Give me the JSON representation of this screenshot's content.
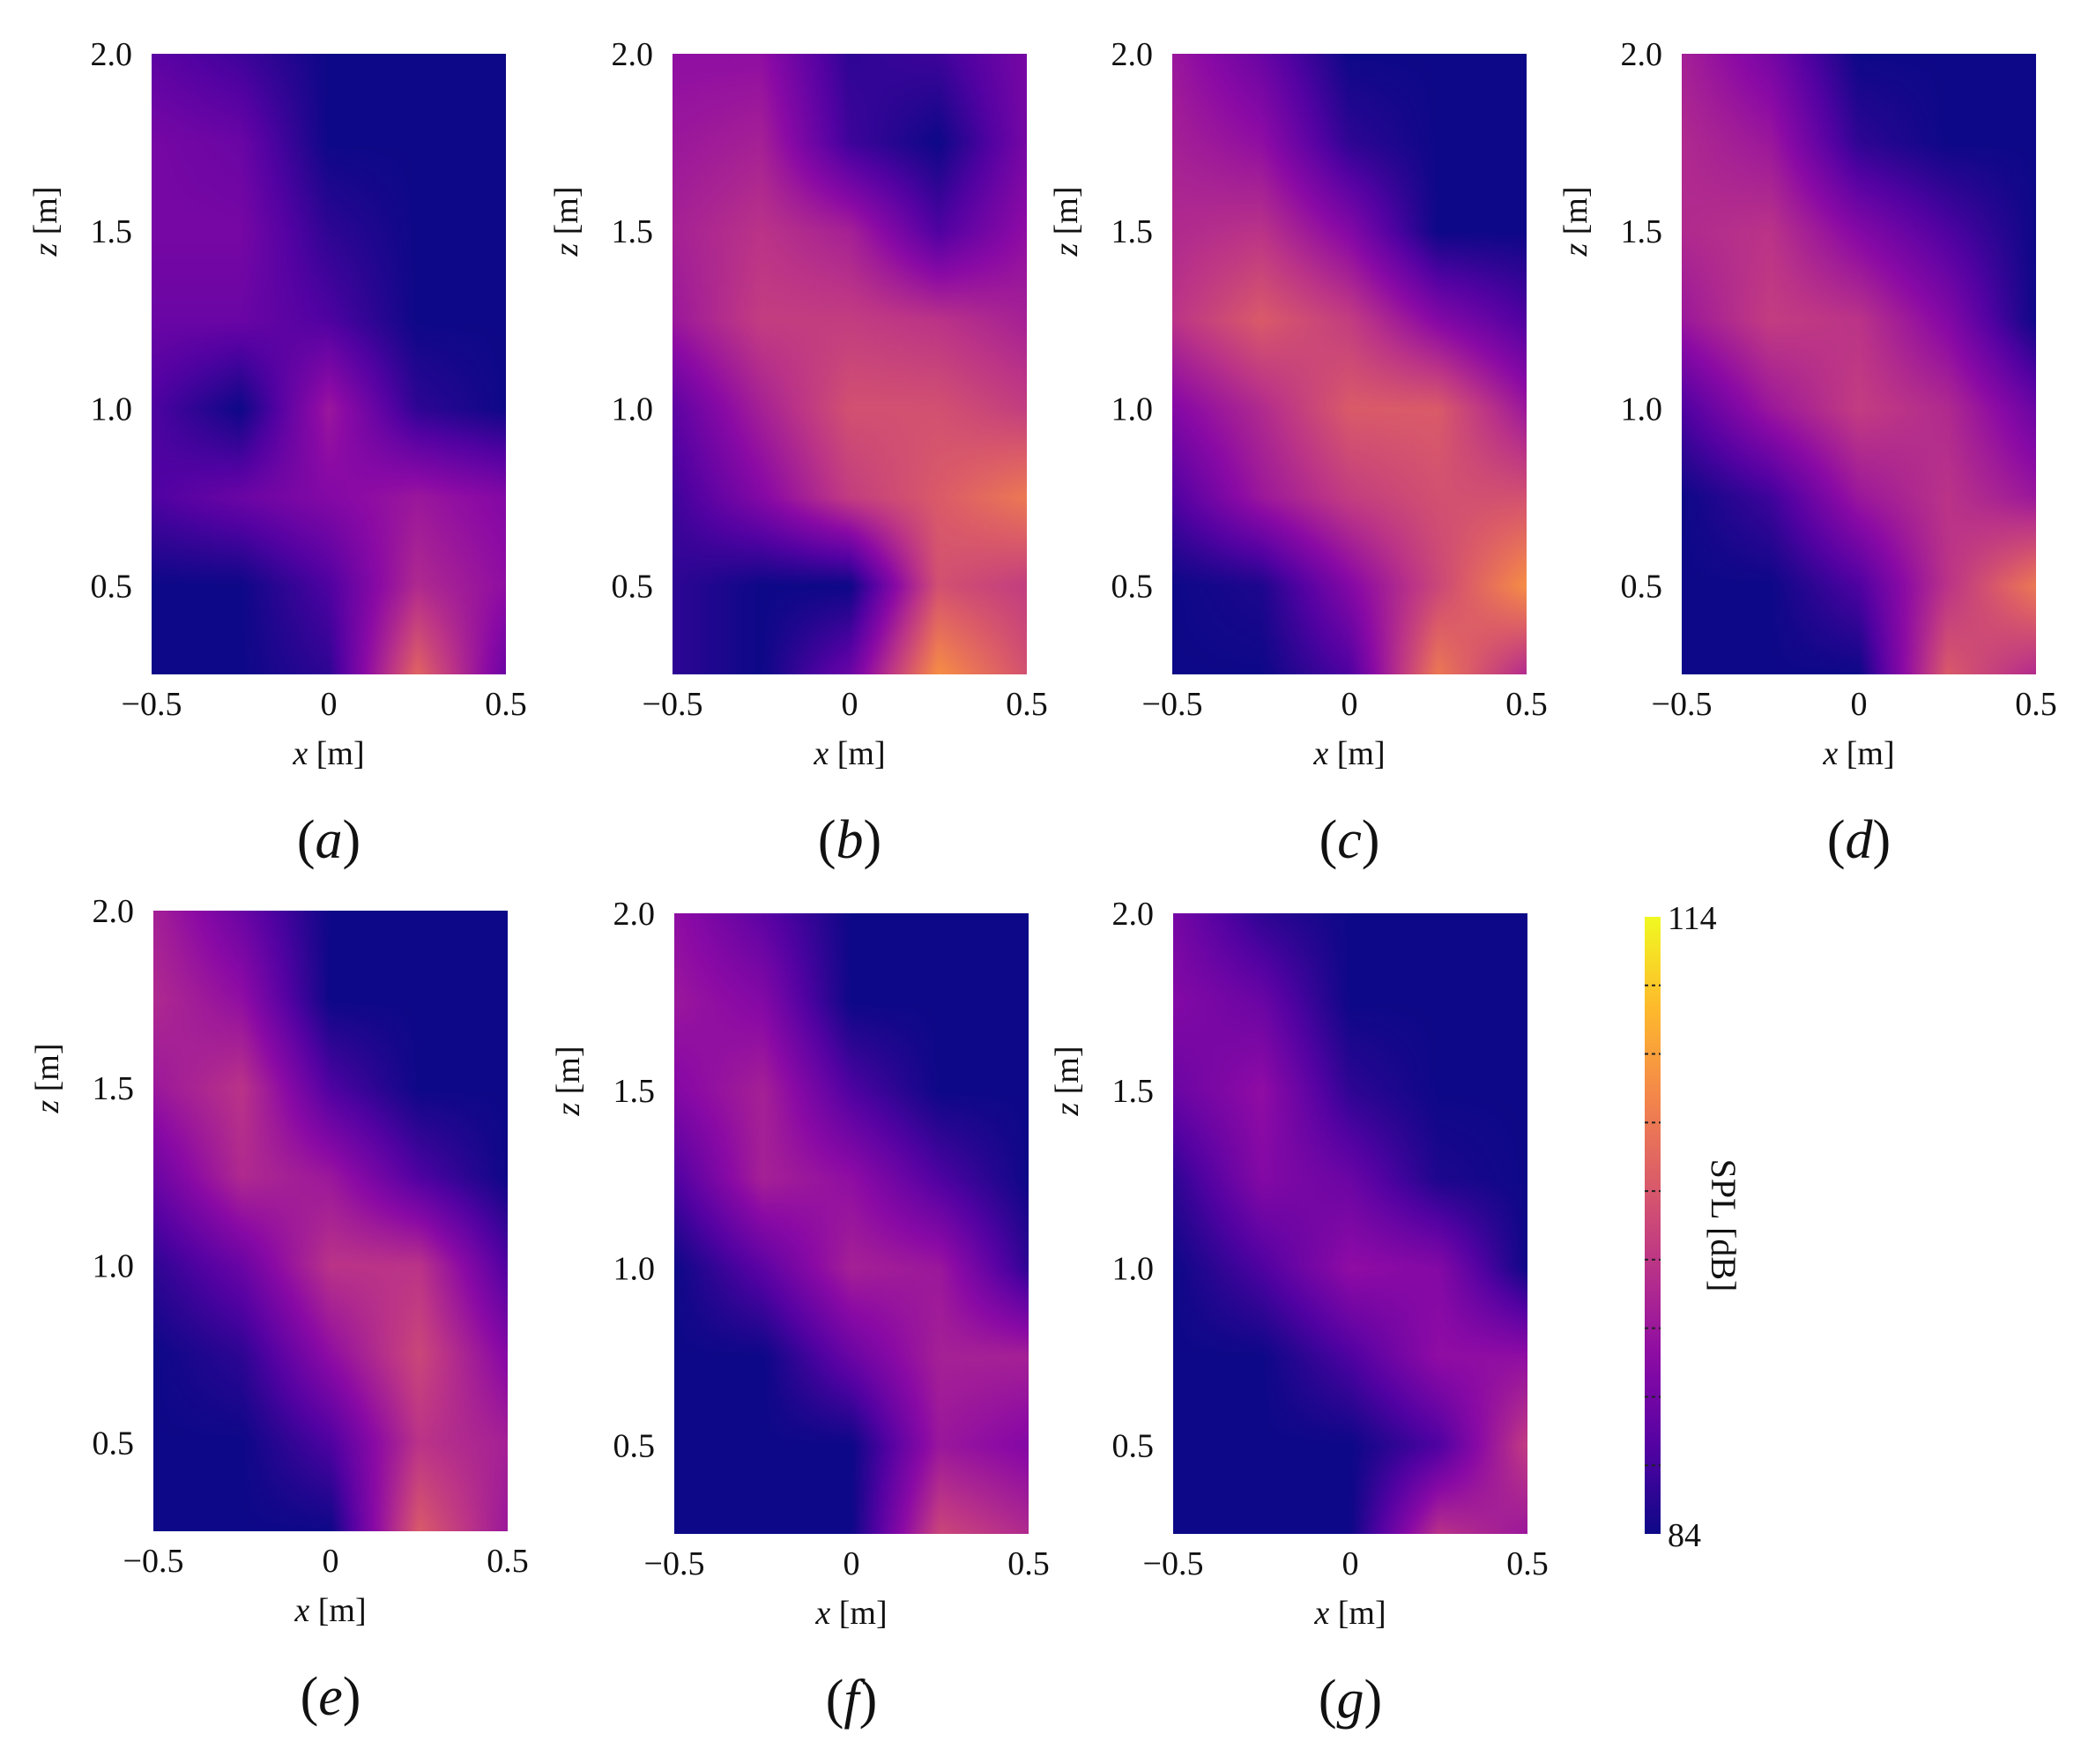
{
  "figure": {
    "colormap": "plasma",
    "colorbar": {
      "label": "SPL [dB]",
      "min": 84,
      "max": 114,
      "min_label": "84",
      "max_label": "114",
      "ticks": 9
    }
  },
  "chart_data": [
    {
      "type": "heatmap",
      "panel": "(a)",
      "caption_letter": "a",
      "xlabel_var": "x",
      "xlabel_unit": " [m]",
      "ylabel_var": "z",
      "ylabel_unit": " [m]",
      "xlim": [
        -0.5,
        0.5
      ],
      "ylim": [
        0.25,
        2.0
      ],
      "xticks": [
        "−0.5",
        "0",
        "0.5"
      ],
      "xtick_values": [
        -0.5,
        0,
        0.5
      ],
      "yticks": [
        "0.5",
        "1.0",
        "1.5",
        "2.0"
      ],
      "ytick_values": [
        0.5,
        1.0,
        1.5,
        2.0
      ],
      "x": [
        -0.5,
        -0.25,
        0,
        0.25,
        0.5
      ],
      "z": [
        0.25,
        0.5,
        0.75,
        1.0,
        1.25,
        1.5,
        1.75,
        2.0
      ],
      "values": [
        [
          84,
          84,
          86,
          102,
          90
        ],
        [
          84,
          84,
          88,
          96,
          93
        ],
        [
          88,
          90,
          92,
          94,
          92
        ],
        [
          88,
          84,
          94,
          86,
          84
        ],
        [
          90,
          90,
          88,
          84,
          84
        ],
        [
          91,
          91,
          86,
          84,
          84
        ],
        [
          91,
          90,
          84,
          84,
          84
        ],
        [
          89,
          87,
          84,
          84,
          84
        ]
      ]
    },
    {
      "type": "heatmap",
      "panel": "(b)",
      "caption_letter": "b",
      "xlabel_var": "x",
      "xlabel_unit": " [m]",
      "ylabel_var": "z",
      "ylabel_unit": " [m]",
      "xlim": [
        -0.5,
        0.5
      ],
      "ylim": [
        0.25,
        2.0
      ],
      "xticks": [
        "−0.5",
        "0",
        "0.5"
      ],
      "xtick_values": [
        -0.5,
        0,
        0.5
      ],
      "yticks": [
        "0.5",
        "1.0",
        "1.5",
        "2.0"
      ],
      "ytick_values": [
        0.5,
        1.0,
        1.5,
        2.0
      ],
      "x": [
        -0.5,
        -0.25,
        0,
        0.25,
        0.5
      ],
      "z": [
        0.25,
        0.5,
        0.75,
        1.0,
        1.25,
        1.5,
        1.75,
        2.0
      ],
      "values": [
        [
          86,
          84,
          90,
          106,
          100
        ],
        [
          86,
          84,
          84,
          100,
          98
        ],
        [
          87,
          92,
          98,
          101,
          104
        ],
        [
          89,
          95,
          100,
          100,
          98
        ],
        [
          94,
          98,
          98,
          97,
          95
        ],
        [
          95,
          97,
          95,
          88,
          93
        ],
        [
          94,
          95,
          87,
          84,
          91
        ],
        [
          93,
          93,
          86,
          87,
          91
        ]
      ]
    },
    {
      "type": "heatmap",
      "panel": "(c)",
      "caption_letter": "c",
      "xlabel_var": "x",
      "xlabel_unit": " [m]",
      "ylabel_var": "z",
      "ylabel_unit": " [m]",
      "xlim": [
        -0.5,
        0.5
      ],
      "ylim": [
        0.25,
        2.0
      ],
      "xticks": [
        "−0.5",
        "0",
        "0.5"
      ],
      "xtick_values": [
        -0.5,
        0,
        0.5
      ],
      "yticks": [
        "0.5",
        "1.0",
        "1.5",
        "2.0"
      ],
      "ytick_values": [
        0.5,
        1.0,
        1.5,
        2.0
      ],
      "x": [
        -0.5,
        -0.25,
        0,
        0.25,
        0.5
      ],
      "z": [
        0.25,
        0.5,
        0.75,
        1.0,
        1.25,
        1.5,
        1.75,
        2.0
      ],
      "values": [
        [
          84,
          84,
          88,
          104,
          96
        ],
        [
          84,
          85,
          92,
          99,
          106
        ],
        [
          88,
          94,
          98,
          100,
          100
        ],
        [
          92,
          96,
          101,
          101,
          94
        ],
        [
          97,
          101,
          98,
          92,
          88
        ],
        [
          96,
          97,
          92,
          84,
          84
        ],
        [
          95,
          93,
          86,
          84,
          84
        ],
        [
          94,
          90,
          84,
          84,
          84
        ]
      ]
    },
    {
      "type": "heatmap",
      "panel": "(d)",
      "caption_letter": "d",
      "xlabel_var": "x",
      "xlabel_unit": " [m]",
      "ylabel_var": "z",
      "ylabel_unit": " [m]",
      "xlim": [
        -0.5,
        0.5
      ],
      "ylim": [
        0.25,
        2.0
      ],
      "xticks": [
        "−0.5",
        "0",
        "0.5"
      ],
      "xtick_values": [
        -0.5,
        0,
        0.5
      ],
      "yticks": [
        "0.5",
        "1.0",
        "1.5",
        "2.0"
      ],
      "ytick_values": [
        0.5,
        1.0,
        1.5,
        2.0
      ],
      "x": [
        -0.5,
        -0.25,
        0,
        0.25,
        0.5
      ],
      "z": [
        0.25,
        0.5,
        0.75,
        1.0,
        1.25,
        1.5,
        1.75,
        2.0
      ],
      "values": [
        [
          84,
          84,
          84,
          101,
          96
        ],
        [
          84,
          84,
          88,
          97,
          104
        ],
        [
          84,
          87,
          94,
          97,
          94
        ],
        [
          88,
          94,
          98,
          96,
          90
        ],
        [
          94,
          98,
          97,
          92,
          84
        ],
        [
          96,
          97,
          92,
          88,
          84
        ],
        [
          96,
          94,
          86,
          84,
          84
        ],
        [
          95,
          91,
          84,
          84,
          84
        ]
      ]
    },
    {
      "type": "heatmap",
      "panel": "(e)",
      "caption_letter": "e",
      "xlabel_var": "x",
      "xlabel_unit": " [m]",
      "ylabel_var": "z",
      "ylabel_unit": " [m]",
      "xlim": [
        -0.5,
        0.5
      ],
      "ylim": [
        0.25,
        2.0
      ],
      "xticks": [
        "−0.5",
        "0",
        "0.5"
      ],
      "xtick_values": [
        -0.5,
        0,
        0.5
      ],
      "yticks": [
        "0.5",
        "1.0",
        "1.5",
        "2.0"
      ],
      "ytick_values": [
        0.5,
        1.0,
        1.5,
        2.0
      ],
      "x": [
        -0.5,
        -0.25,
        0,
        0.25,
        0.5
      ],
      "z": [
        0.25,
        0.5,
        0.75,
        1.0,
        1.25,
        1.5,
        1.75,
        2.0
      ],
      "values": [
        [
          84,
          84,
          84,
          101,
          94
        ],
        [
          84,
          84,
          88,
          97,
          95
        ],
        [
          84,
          86,
          93,
          99,
          92
        ],
        [
          86,
          90,
          97,
          97,
          88
        ],
        [
          90,
          96,
          94,
          88,
          84
        ],
        [
          94,
          97,
          88,
          84,
          84
        ],
        [
          96,
          93,
          84,
          84,
          84
        ],
        [
          95,
          90,
          84,
          84,
          84
        ]
      ]
    },
    {
      "type": "heatmap",
      "panel": "(f)",
      "caption_letter": "f",
      "xlabel_var": "x",
      "xlabel_unit": " [m]",
      "ylabel_var": "z",
      "ylabel_unit": " [m]",
      "xlim": [
        -0.5,
        0.5
      ],
      "ylim": [
        0.25,
        2.0
      ],
      "xticks": [
        "−0.5",
        "0",
        "0.5"
      ],
      "xtick_values": [
        -0.5,
        0,
        0.5
      ],
      "yticks": [
        "0.5",
        "1.0",
        "1.5",
        "2.0"
      ],
      "ytick_values": [
        0.5,
        1.0,
        1.5,
        2.0
      ],
      "x": [
        -0.5,
        -0.25,
        0,
        0.25,
        0.5
      ],
      "z": [
        0.25,
        0.5,
        0.75,
        1.0,
        1.25,
        1.5,
        1.75,
        2.0
      ],
      "values": [
        [
          84,
          84,
          84,
          99,
          96
        ],
        [
          84,
          84,
          84,
          94,
          92
        ],
        [
          84,
          84,
          90,
          95,
          95
        ],
        [
          84,
          89,
          95,
          94,
          86
        ],
        [
          88,
          95,
          93,
          88,
          84
        ],
        [
          92,
          95,
          88,
          84,
          84
        ],
        [
          94,
          92,
          84,
          84,
          84
        ],
        [
          93,
          89,
          84,
          84,
          84
        ]
      ]
    },
    {
      "type": "heatmap",
      "panel": "(g)",
      "caption_letter": "g",
      "xlabel_var": "x",
      "xlabel_unit": " [m]",
      "ylabel_var": "z",
      "ylabel_unit": " [m]",
      "xlim": [
        -0.5,
        0.5
      ],
      "ylim": [
        0.25,
        2.0
      ],
      "xticks": [
        "−0.5",
        "0",
        "0.5"
      ],
      "xtick_values": [
        -0.5,
        0,
        0.5
      ],
      "yticks": [
        "0.5",
        "1.0",
        "1.5",
        "2.0"
      ],
      "ytick_values": [
        0.5,
        1.0,
        1.5,
        2.0
      ],
      "x": [
        -0.5,
        -0.25,
        0,
        0.25,
        0.5
      ],
      "z": [
        0.25,
        0.5,
        0.75,
        1.0,
        1.25,
        1.5,
        1.75,
        2.0
      ],
      "values": [
        [
          84,
          84,
          84,
          97,
          94
        ],
        [
          84,
          84,
          84,
          88,
          98
        ],
        [
          84,
          84,
          88,
          93,
          93
        ],
        [
          84,
          88,
          93,
          92,
          84
        ],
        [
          86,
          92,
          90,
          85,
          84
        ],
        [
          90,
          93,
          86,
          84,
          84
        ],
        [
          92,
          90,
          84,
          84,
          84
        ],
        [
          91,
          86,
          84,
          84,
          84
        ]
      ]
    }
  ]
}
